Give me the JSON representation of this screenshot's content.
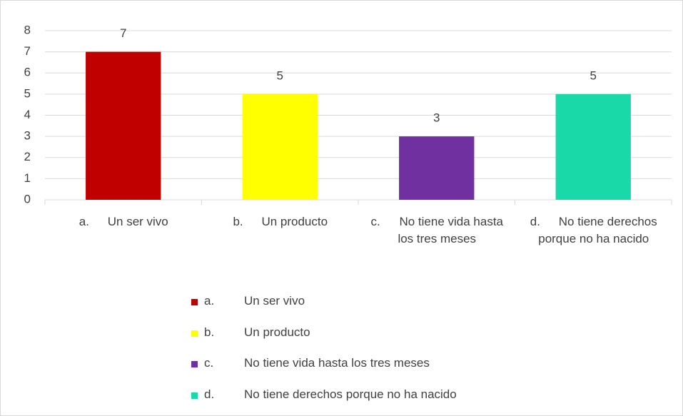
{
  "chart_data": {
    "type": "bar",
    "categories": [
      "a.\tUn ser vivo",
      "b.\tUn producto",
      "c.\tNo tiene vida hasta los tres meses",
      "d.\tNo tiene derechos porque no ha nacido"
    ],
    "values": [
      7,
      5,
      3,
      5
    ],
    "colors": [
      "#c00000",
      "#ffff00",
      "#7030a0",
      "#1ad9a8"
    ],
    "ylim": [
      0,
      8
    ],
    "yticks": [
      0,
      1,
      2,
      3,
      4,
      5,
      6,
      7,
      8
    ],
    "grid": true,
    "legend": "bottom"
  }
}
